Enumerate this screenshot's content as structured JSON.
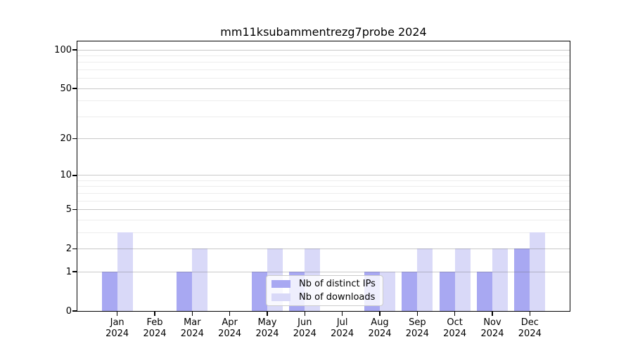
{
  "chart_data": {
    "type": "bar",
    "title": "mm11ksubammentrezg7probe 2024",
    "categories": [
      "Jan 2024",
      "Feb 2024",
      "Mar 2024",
      "Apr 2024",
      "May 2024",
      "Jun 2024",
      "Jul 2024",
      "Aug 2024",
      "Sep 2024",
      "Oct 2024",
      "Nov 2024",
      "Dec 2024"
    ],
    "series": [
      {
        "name": "Nb of distinct IPs",
        "color": "#a8a8f2",
        "values": [
          1,
          0,
          1,
          0,
          1,
          1,
          0,
          1,
          1,
          1,
          1,
          2
        ]
      },
      {
        "name": "Nb of downloads",
        "color": "#d9d9f8",
        "values": [
          3,
          0,
          2,
          0,
          2,
          2,
          0,
          1,
          2,
          2,
          2,
          3
        ]
      }
    ],
    "yscale": "log1p",
    "y_axis": {
      "major_ticks": [
        0,
        1,
        2,
        5,
        10,
        20,
        50,
        100
      ],
      "minor_gridlines": [
        3,
        4,
        6,
        7,
        8,
        9,
        30,
        40,
        60,
        70,
        80,
        90
      ],
      "range": [
        0,
        116
      ]
    },
    "xlabel": "",
    "ylabel": "",
    "grid": true,
    "legend_position": "lower center"
  },
  "colors": {
    "major_grid": "rgba(100,100,100,0.35)",
    "minor_grid": "rgba(0,0,0,0.07)",
    "axis": "#000000",
    "background": "#ffffff"
  }
}
